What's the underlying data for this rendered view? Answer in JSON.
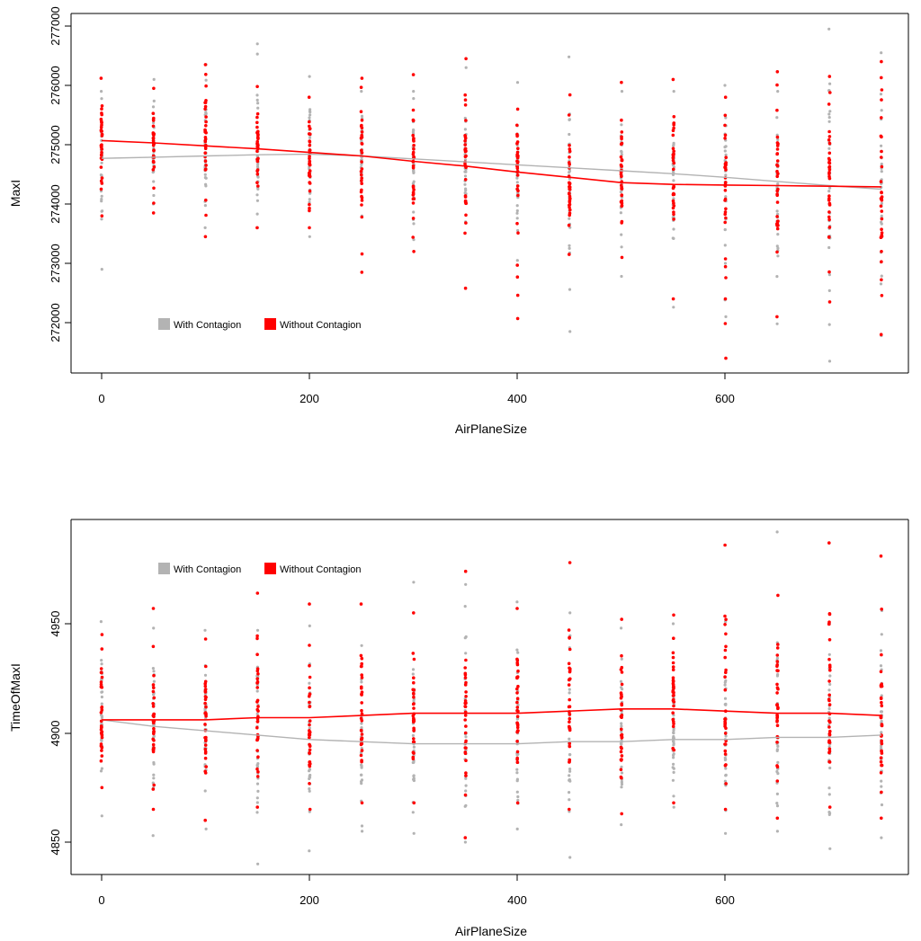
{
  "chart_data": [
    {
      "type": "scatter",
      "xlabel": "AirPlaneSize",
      "ylabel": "MaxI",
      "xlim": [
        -30,
        780
      ],
      "ylim": [
        271300,
        277200
      ],
      "x_ticks": [
        0,
        200,
        400,
        600
      ],
      "x_tick_labels": [
        "0",
        "200",
        "400",
        "600"
      ],
      "y_ticks": [
        272000,
        273000,
        274000,
        275000,
        276000,
        277000
      ],
      "y_tick_labels": [
        "272000",
        "273000",
        "274000",
        "275000",
        "276000",
        "277000"
      ],
      "legend": {
        "placement": "bottom-left",
        "entries": [
          {
            "label": "With Contagion",
            "color": "#b3b3b3"
          },
          {
            "label": "Without Contagion",
            "color": "#ff0000"
          }
        ]
      },
      "series": [
        {
          "name": "With Contagion",
          "color": "#b3b3b3",
          "trend_x": [
            0,
            50,
            100,
            150,
            200,
            250,
            300,
            350,
            400,
            450,
            500,
            550,
            600,
            650,
            700,
            750
          ],
          "trend_y": [
            274770,
            274790,
            274810,
            274830,
            274840,
            274810,
            274760,
            274710,
            274660,
            274610,
            274560,
            274510,
            274450,
            274380,
            274310,
            274250
          ],
          "spread_min": [
            272900,
            274000,
            273600,
            273600,
            273450,
            273800,
            273400,
            273700,
            273050,
            271850,
            272780,
            272260,
            272100,
            271980,
            271350,
            271780
          ],
          "spread_max": [
            275900,
            276100,
            276350,
            276700,
            276150,
            275900,
            275900,
            276300,
            276050,
            276480,
            275900,
            275900,
            276000,
            275900,
            276950,
            276550
          ]
        },
        {
          "name": "Without Contagion",
          "color": "#ff0000",
          "trend_x": [
            0,
            50,
            100,
            150,
            200,
            250,
            300,
            350,
            400,
            450,
            500,
            550,
            600,
            650,
            700,
            750
          ],
          "trend_y": [
            275070,
            275030,
            274980,
            274930,
            274870,
            274810,
            274720,
            274640,
            274540,
            274450,
            274360,
            274330,
            274320,
            274310,
            274300,
            274290
          ],
          "spread_min": [
            273800,
            273850,
            273450,
            273600,
            273600,
            272850,
            273200,
            272580,
            272070,
            273150,
            273100,
            272400,
            271400,
            272100,
            272350,
            271800
          ],
          "spread_max": [
            276120,
            275950,
            276350,
            275980,
            275800,
            276120,
            276180,
            276450,
            275600,
            275840,
            276050,
            276100,
            275800,
            276230,
            276150,
            276400
          ]
        }
      ]
    },
    {
      "type": "scatter",
      "xlabel": "AirPlaneSize",
      "ylabel": "TimeOfMaxI",
      "xlim": [
        -30,
        780
      ],
      "ylim": [
        4835,
        4995
      ],
      "x_ticks": [
        0,
        200,
        400,
        600
      ],
      "x_tick_labels": [
        "0",
        "200",
        "400",
        "600"
      ],
      "y_ticks": [
        4850,
        4900,
        4950
      ],
      "y_tick_labels": [
        "4850",
        "4900",
        "4950"
      ],
      "legend": {
        "placement": "top-left",
        "entries": [
          {
            "label": "With Contagion",
            "color": "#b3b3b3"
          },
          {
            "label": "Without Contagion",
            "color": "#ff0000"
          }
        ]
      },
      "series": [
        {
          "name": "With Contagion",
          "color": "#b3b3b3",
          "trend_x": [
            0,
            50,
            100,
            150,
            200,
            250,
            300,
            350,
            400,
            450,
            500,
            550,
            600,
            650,
            700,
            750
          ],
          "trend_y": [
            4906,
            4903,
            4901,
            4899,
            4897,
            4896,
            4895,
            4895,
            4895,
            4896,
            4896,
            4897,
            4897,
            4898,
            4898,
            4899
          ],
          "spread_min": [
            4862,
            4853,
            4856,
            4840,
            4846,
            4855,
            4854,
            4850,
            4856,
            4843,
            4858,
            4866,
            4854,
            4855,
            4847,
            4852
          ],
          "spread_max": [
            4951,
            4948,
            4947,
            4947,
            4949,
            4940,
            4969,
            4968,
            4960,
            4955,
            4948,
            4950,
            4951,
            4992,
            4950,
            4956
          ]
        },
        {
          "name": "Without Contagion",
          "color": "#ff0000",
          "trend_x": [
            0,
            50,
            100,
            150,
            200,
            250,
            300,
            350,
            400,
            450,
            500,
            550,
            600,
            650,
            700,
            750
          ],
          "trend_y": [
            4906,
            4906,
            4906,
            4907,
            4907,
            4908,
            4909,
            4909,
            4909,
            4910,
            4911,
            4911,
            4910,
            4909,
            4909,
            4908
          ],
          "spread_min": [
            4875,
            4865,
            4860,
            4866,
            4865,
            4868,
            4868,
            4852,
            4868,
            4865,
            4863,
            4868,
            4865,
            4861,
            4866,
            4861
          ],
          "spread_max": [
            4945,
            4957,
            4943,
            4964,
            4959,
            4959,
            4955,
            4974,
            4957,
            4978,
            4952,
            4954,
            4986,
            4963,
            4987,
            4981
          ]
        }
      ]
    }
  ]
}
